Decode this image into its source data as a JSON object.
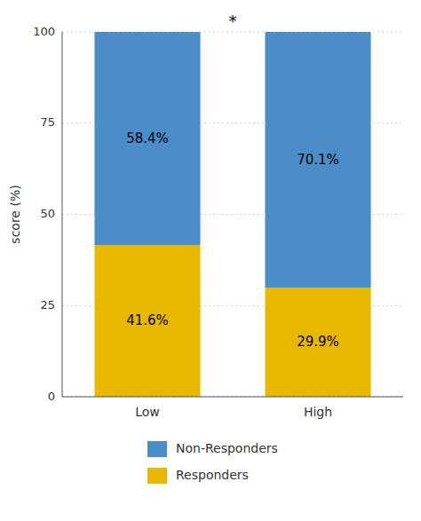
{
  "chart_data": {
    "type": "bar",
    "stacked": true,
    "categories": [
      "Low",
      "High"
    ],
    "series": [
      {
        "name": "Responders",
        "color": "#E8B800",
        "values": [
          41.6,
          29.9
        ],
        "value_labels": [
          "41.6%",
          "29.9%"
        ]
      },
      {
        "name": "Non-Responders",
        "color": "#4A8DC8",
        "values": [
          58.4,
          70.1
        ],
        "value_labels": [
          "58.4%",
          "70.1%"
        ]
      }
    ],
    "ylabel": "score (%)",
    "ylim": [
      0,
      100
    ],
    "yticks": [
      0,
      25,
      50,
      75,
      100
    ],
    "grid": true,
    "data_labels": true,
    "legend": "bottom",
    "annotations": [
      {
        "text": "*"
      }
    ]
  }
}
